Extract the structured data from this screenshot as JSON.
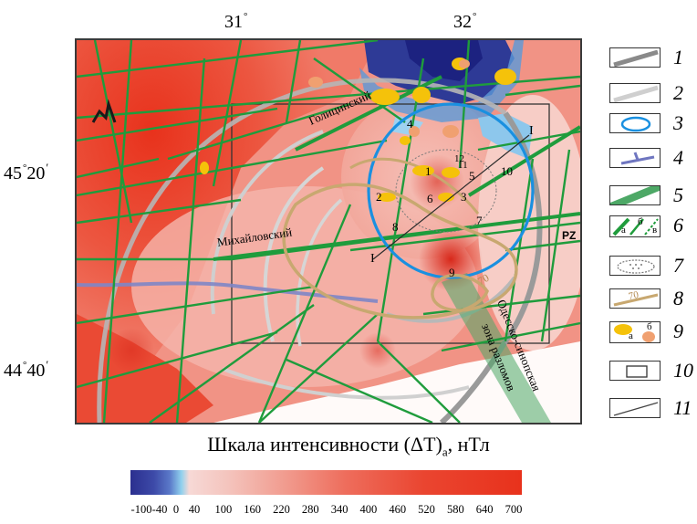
{
  "coords": {
    "lon_left": "31",
    "lon_right": "32",
    "lat_top": "45",
    "lat_top_min": "20",
    "lat_bottom": "44",
    "lat_bottom_min": "40",
    "degree_mark": "°",
    "minute_mark": "′"
  },
  "map": {
    "labels": {
      "golitsynsky": "Голицинский",
      "mikhailovsky": "Михайловский",
      "odessa_line1": "Одесско-синопская",
      "odessa_line2": "зона разломов",
      "pz": "PZ",
      "profile_end_a": "I",
      "profile_end_b": "I",
      "isoline_value": "70"
    },
    "anomaly_numbers": [
      "1",
      "2",
      "3",
      "4",
      "5",
      "6",
      "7",
      "8",
      "9",
      "10",
      "11",
      "12"
    ]
  },
  "legend": {
    "items": [
      {
        "num": "1"
      },
      {
        "num": "2"
      },
      {
        "num": "3"
      },
      {
        "num": "4"
      },
      {
        "num": "5"
      },
      {
        "num": "6",
        "sub_a": "а",
        "sub_b": "б",
        "sub_c": "в"
      },
      {
        "num": "7"
      },
      {
        "num": "8",
        "sample_value": "70"
      },
      {
        "num": "9",
        "sub_a": "а",
        "sub_b": "б"
      },
      {
        "num": "10"
      },
      {
        "num": "11"
      }
    ]
  },
  "scale": {
    "title": "Шкала интенсивности (ΔT)",
    "title_sub": "a",
    "title_unit": ", нТл",
    "ticks": [
      "-100",
      "-40",
      "0",
      "40",
      "100",
      "160",
      "220",
      "280",
      "340",
      "400",
      "460",
      "520",
      "580",
      "640",
      "700"
    ],
    "colors": {
      "negative": "#2b2f8f",
      "zero": "#8fd0ee",
      "low": "#f7d9d6",
      "mid": "#ee6d5c",
      "high": "#e8321c"
    }
  },
  "colors": {
    "fault_green": "#1f9c3c",
    "highway_gray": "#9a9a9a",
    "light_gray": "#d3d3d3",
    "circle_blue": "#1a90e0",
    "isoline_tan": "#c8a870",
    "yellow": "#f5c20a",
    "orange": "#f0a070"
  }
}
